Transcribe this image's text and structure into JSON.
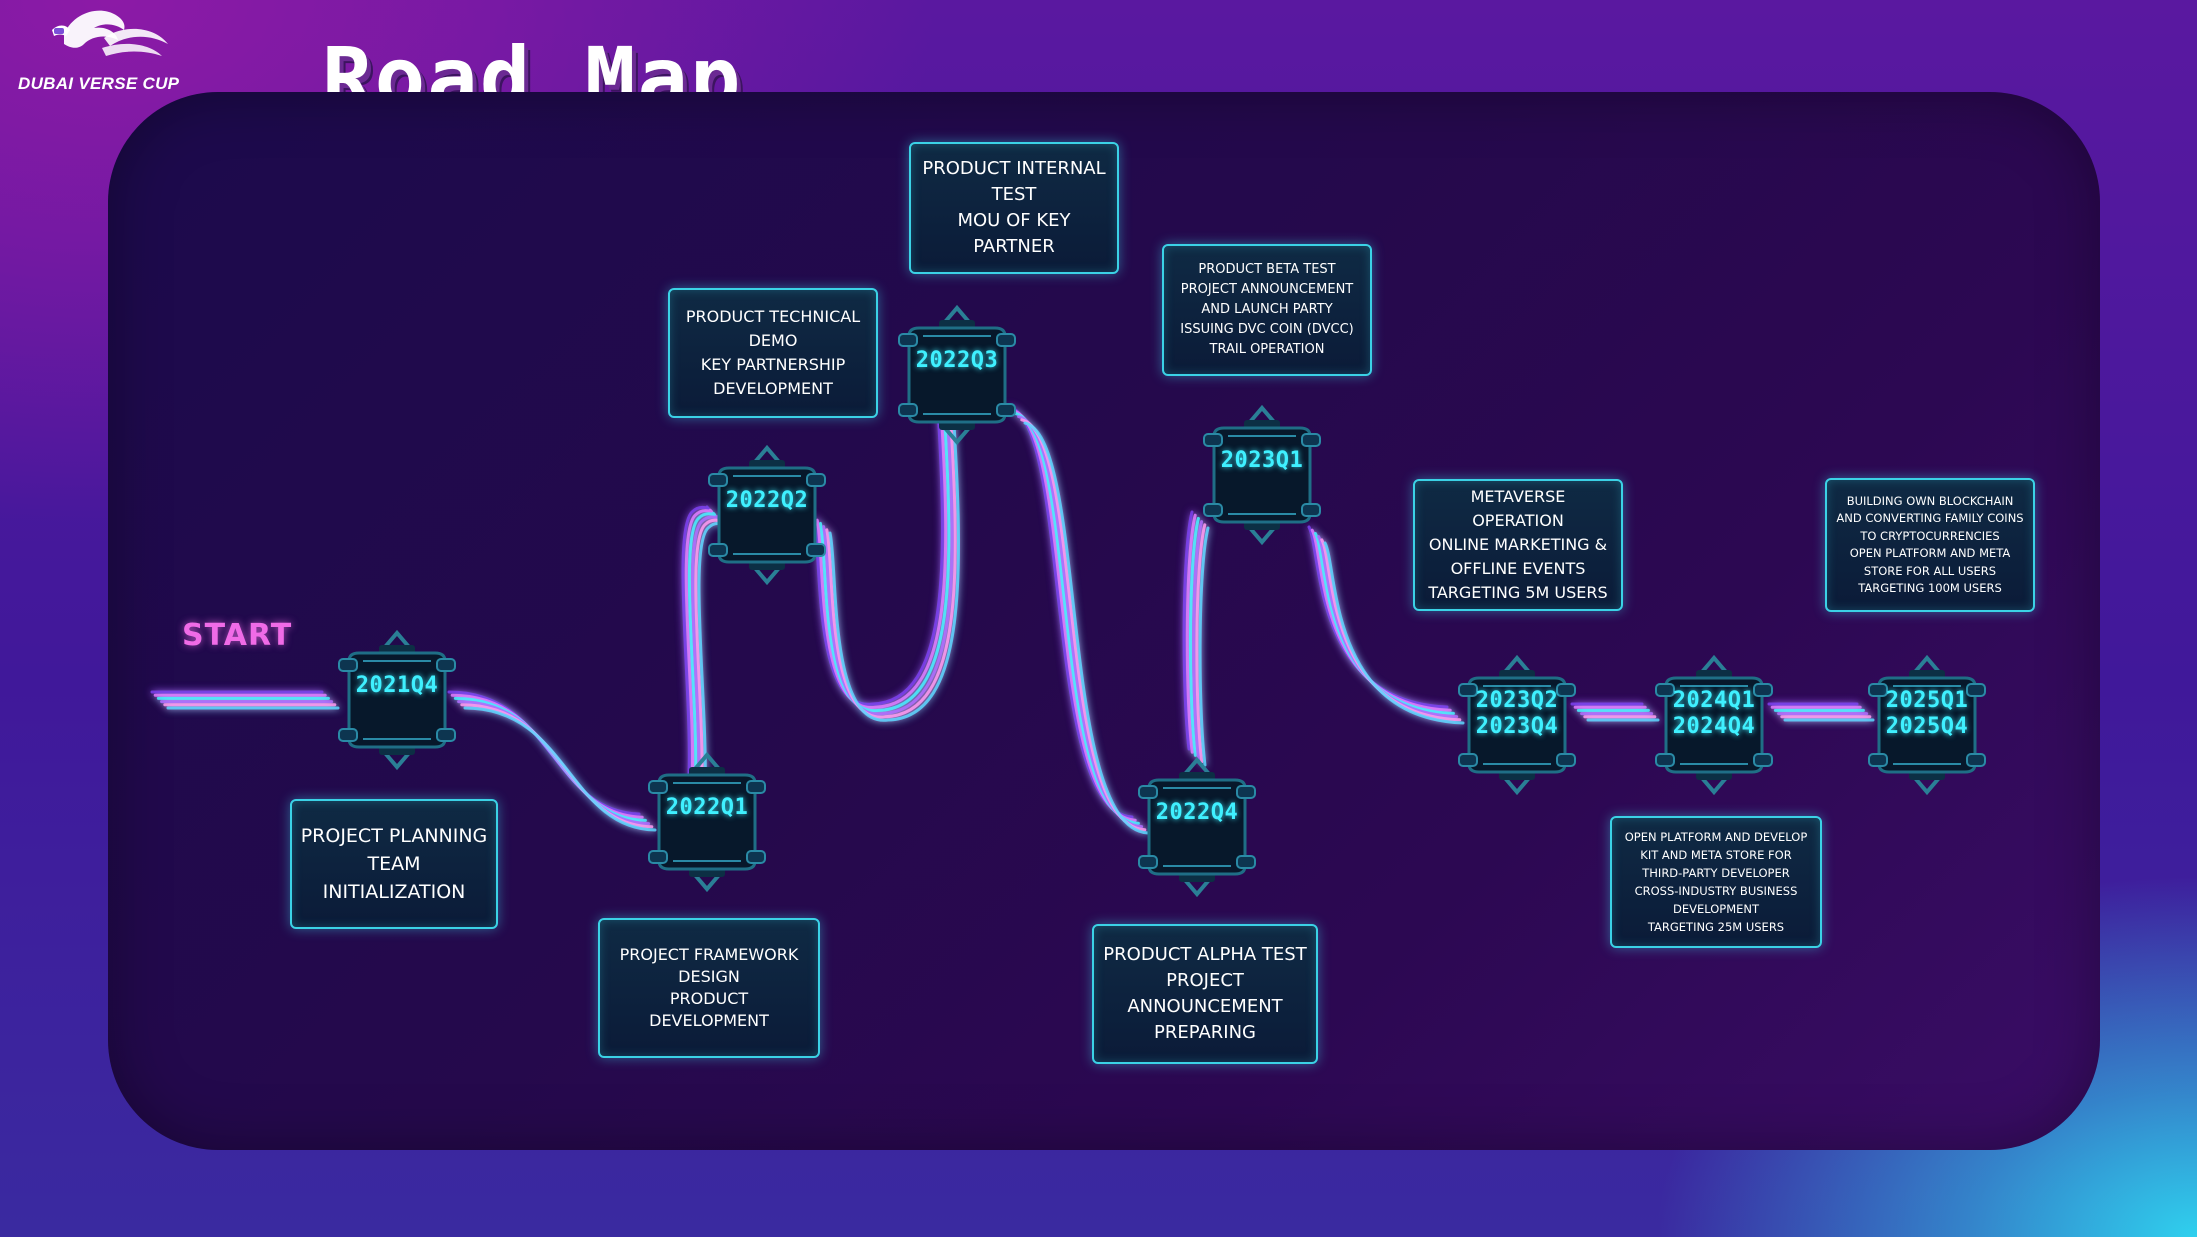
{
  "brand": {
    "logo_text": "DUBAI VERSE CUP",
    "logo_icon": "horse-icon"
  },
  "title": "Road Map",
  "start_label": "START",
  "colors": {
    "accent": "#3ff0ff",
    "start": "#f06be7",
    "card_border": "#3bd2e6"
  },
  "milestones": [
    {
      "label": [
        "2021Q4"
      ],
      "items": [
        "PROJECT PLANNING",
        "TEAM INITIALIZATION"
      ]
    },
    {
      "label": [
        "2022Q1"
      ],
      "items": [
        "PROJECT FRAMEWORK",
        "DESIGN",
        "PRODUCT DEVELOPMENT"
      ]
    },
    {
      "label": [
        "2022Q2"
      ],
      "items": [
        "PRODUCT TECHNICAL",
        "DEMO",
        "KEY PARTNERSHIP",
        "DEVELOPMENT"
      ]
    },
    {
      "label": [
        "2022Q3"
      ],
      "items": [
        "PRODUCT INTERNAL",
        "TEST",
        "MOU OF KEY",
        "PARTNER"
      ]
    },
    {
      "label": [
        "2022Q4"
      ],
      "items": [
        "PRODUCT ALPHA TEST",
        "PROJECT",
        "ANNOUNCEMENT",
        "PREPARING"
      ]
    },
    {
      "label": [
        "2023Q1"
      ],
      "items": [
        "PRODUCT BETA TEST",
        "PROJECT ANNOUNCEMENT",
        "AND LAUNCH PARTY",
        "ISSUING DVC COIN (DVCC)",
        "TRAIL OPERATION"
      ]
    },
    {
      "label": [
        "2023Q2",
        "2023Q4"
      ],
      "items": [
        "METAVERSE OPERATION",
        "ONLINE MARKETING &",
        "OFFLINE EVENTS",
        "TARGETING 5M USERS"
      ]
    },
    {
      "label": [
        "2024Q1",
        "2024Q4"
      ],
      "items": [
        "OPEN PLATFORM AND DEVELOP",
        "KIT AND META STORE FOR",
        "THIRD-PARTY DEVELOPER",
        "CROSS-INDUSTRY BUSINESS",
        "DEVELOPMENT",
        "TARGETING 25M USERS"
      ]
    },
    {
      "label": [
        "2025Q1",
        "2025Q4"
      ],
      "items": [
        "BUILDING OWN BLOCKCHAIN",
        "AND CONVERTING FAMILY COINS",
        "TO CRYPTOCURRENCIES",
        "OPEN PLATFORM AND META",
        "STORE FOR ALL USERS",
        "TARGETING 100M USERS"
      ]
    }
  ]
}
